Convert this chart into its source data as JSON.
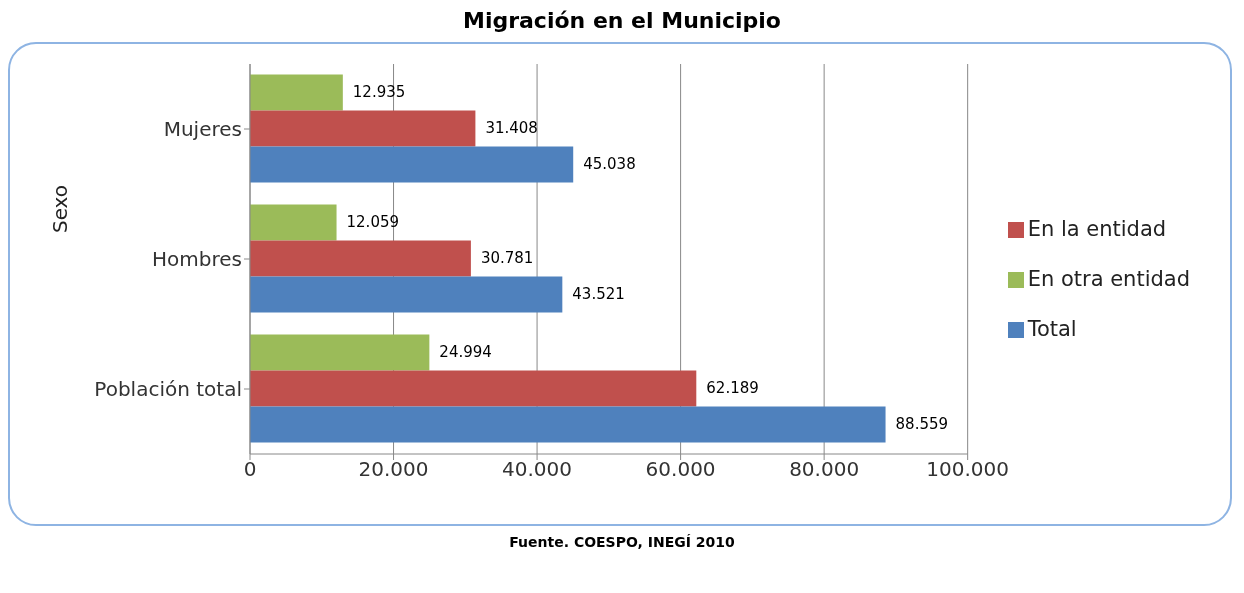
{
  "chart_data": {
    "type": "bar",
    "orientation": "horizontal",
    "title": "Migración en el Municipio",
    "categories": [
      "Mujeres",
      "Hombres",
      "Población total"
    ],
    "series": [
      {
        "name": "En otra entidad",
        "color": "#9bbb59",
        "values": [
          12935,
          12059,
          24994
        ],
        "value_labels": [
          "12.935",
          "12.059",
          "24.994"
        ]
      },
      {
        "name": "En la entidad",
        "color": "#c0504d",
        "values": [
          31408,
          30781,
          62189
        ],
        "value_labels": [
          "31.408",
          "30.781",
          "62.189"
        ]
      },
      {
        "name": "Total",
        "color": "#4f81bd",
        "values": [
          45038,
          43521,
          88559
        ],
        "value_labels": [
          "45.038",
          "43.521",
          "88.559"
        ]
      }
    ],
    "xlim": [
      0,
      100000
    ],
    "xticks": [
      {
        "value": 0,
        "label": "0"
      },
      {
        "value": 20000,
        "label": "20.000"
      },
      {
        "value": 40000,
        "label": "40.000"
      },
      {
        "value": 60000,
        "label": "60.000"
      },
      {
        "value": 80000,
        "label": "80.000"
      },
      {
        "value": 100000,
        "label": "100.000"
      }
    ],
    "grid": "x",
    "legend": "right",
    "annotations": [
      "Sexo",
      "Fuente. COESPO, INEGÍ 2010"
    ]
  }
}
